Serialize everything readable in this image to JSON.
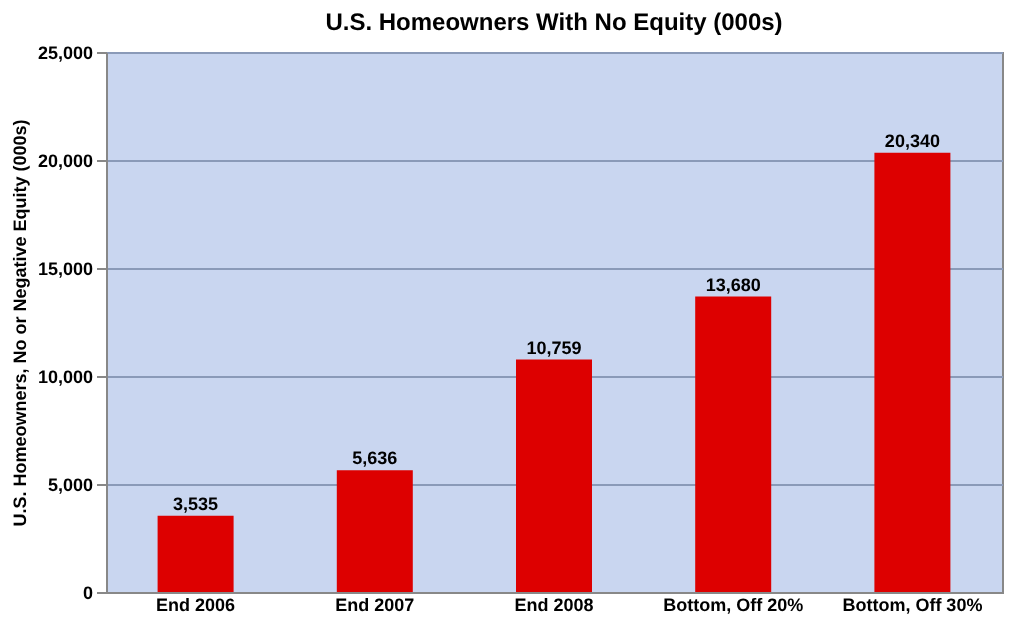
{
  "chart_data": {
    "type": "bar",
    "title": "U.S. Homeowners With No Equity (000s)",
    "ylabel": "U.S. Homeowners, No or Negative Equity (000s)",
    "categories": [
      "End 2006",
      "End 2007",
      "End 2008",
      "Bottom, Off 20%",
      "Bottom, Off 30%"
    ],
    "values": [
      3535,
      5636,
      10759,
      13680,
      20340
    ],
    "color": "#dd0000",
    "value_labels": [
      "3,535",
      "5,636",
      "10,759",
      "13,680",
      "20,340"
    ],
    "ylim": [
      0,
      25000
    ],
    "yticks": [
      0,
      {
        "value": 5000,
        "label": "5,000"
      },
      {
        "value": 10000,
        "label": "10,000"
      },
      {
        "value": 15000,
        "label": "15,000"
      },
      {
        "value": 20000,
        "label": "20,000"
      },
      {
        "value": 25000,
        "label": "25,000"
      }
    ],
    "grid": "y"
  }
}
